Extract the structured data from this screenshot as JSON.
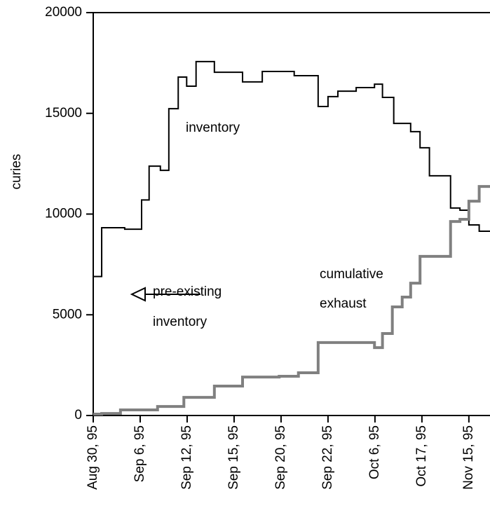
{
  "chart_data": {
    "type": "step",
    "y_label": "curies",
    "annotations": [
      "inventory",
      "pre-existing",
      "inventory",
      "cumulative",
      "exhaust"
    ],
    "xlim": [
      0,
      8.45
    ],
    "xticks": [
      {
        "value": 0,
        "label": "Aug 30, 95"
      },
      {
        "value": 1,
        "label": "Sep 6, 95"
      },
      {
        "value": 2,
        "label": "Sep 12, 95"
      },
      {
        "value": 3,
        "label": "Sep 15, 95"
      },
      {
        "value": 4,
        "label": "Sep 20, 95"
      },
      {
        "value": 5,
        "label": "Sep 22, 95"
      },
      {
        "value": 6,
        "label": "Oct 6, 95"
      },
      {
        "value": 7,
        "label": "Oct 17, 95"
      },
      {
        "value": 8,
        "label": "Nov 15, 95"
      }
    ],
    "ylim": [
      0,
      20000
    ],
    "yticks": [
      0,
      5000,
      10000,
      15000,
      20000
    ],
    "series": [
      {
        "color": "#000000",
        "width": 2,
        "x": [
          0,
          0.18,
          0.67,
          1.03,
          1.19,
          1.43,
          1.61,
          1.81,
          1.99,
          2.19,
          2.58,
          3.18,
          3.6,
          4.28,
          4.79,
          5.0,
          5.21,
          5.6,
          5.99,
          6.16,
          6.4,
          6.76,
          6.96,
          7.16,
          7.61,
          7.81,
          8.0,
          8.22
        ],
        "values": [
          6900,
          9320,
          9250,
          10700,
          12380,
          12170,
          15230,
          16800,
          16350,
          17570,
          17040,
          16560,
          17080,
          16870,
          15340,
          15830,
          16100,
          16280,
          16450,
          15790,
          14500,
          14090,
          13290,
          11900,
          10300,
          10190,
          9460,
          9150
        ]
      },
      {
        "color": "#808080",
        "width": 4,
        "x": [
          0,
          0.18,
          0.58,
          1.37,
          1.93,
          2.58,
          3.18,
          3.96,
          4.37,
          4.79,
          5.99,
          6.16,
          6.37,
          6.58,
          6.76,
          6.96,
          7.61,
          7.81,
          8.0,
          8.22
        ],
        "values": [
          70,
          100,
          280,
          450,
          900,
          1460,
          1910,
          1950,
          2120,
          3620,
          3370,
          4070,
          5390,
          5880,
          6570,
          7900,
          9630,
          9740,
          10640,
          11370
        ]
      }
    ]
  }
}
